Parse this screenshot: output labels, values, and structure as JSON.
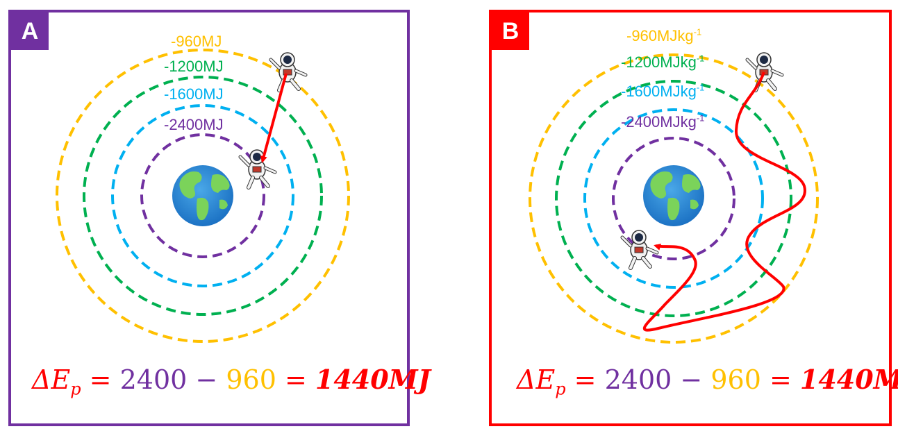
{
  "panels": [
    {
      "badge": "A",
      "energy_levels": [
        {
          "value": "-960",
          "unit": "MJ",
          "superscript": "",
          "color": "#ffc000"
        },
        {
          "value": "-1200",
          "unit": "MJ",
          "superscript": "",
          "color": "#00b050"
        },
        {
          "value": "-1600",
          "unit": "MJ",
          "superscript": "",
          "color": "#00b0f0"
        },
        {
          "value": "-2400",
          "unit": "MJ",
          "superscript": "",
          "color": "#7030a0"
        }
      ],
      "path_type": "direct"
    },
    {
      "badge": "B",
      "energy_levels": [
        {
          "value": "-960",
          "unit": "MJkg",
          "superscript": "-1",
          "color": "#ffc000"
        },
        {
          "value": "-1200",
          "unit": "MJkg",
          "superscript": "-1",
          "color": "#00b050"
        },
        {
          "value": "-1600",
          "unit": "MJkg",
          "superscript": "-1",
          "color": "#00b0f0"
        },
        {
          "value": "-2400",
          "unit": "MJkg",
          "superscript": "-1",
          "color": "#7030a0"
        }
      ],
      "path_type": "winding"
    }
  ],
  "formula": {
    "symbol": "ΔE",
    "subscript": "p",
    "equals": "=",
    "term1": "2400",
    "minus": "−",
    "term2": "960",
    "equals2": "=",
    "result": "1440MJ",
    "colors": {
      "symbol": "#ff0000",
      "term1": "#7030a0",
      "term2": "#ffc000",
      "result": "#ff0000"
    }
  },
  "icons": [
    "earth-icon",
    "astronaut-icon"
  ]
}
